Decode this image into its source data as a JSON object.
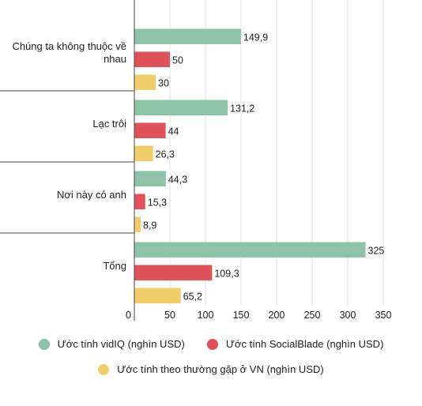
{
  "chart_data": {
    "type": "bar",
    "orientation": "horizontal",
    "title": "",
    "xlabel": "",
    "ylabel": "",
    "categories": [
      "Chúng ta không thuộc về nhau",
      "Lạc trôi",
      "Nơi này có anh",
      "Tổng"
    ],
    "series": [
      {
        "name": "Ước tính vidIQ (nghìn USD)",
        "color": "#8dc4a5",
        "values": [
          149.9,
          131.2,
          44.3,
          325
        ],
        "labels": [
          "149,9",
          "131,2",
          "44,3",
          "325"
        ]
      },
      {
        "name": "Ước tính SocialBlade (nghìn USD)",
        "color": "#e0525a",
        "values": [
          50,
          44,
          15.3,
          109.3
        ],
        "labels": [
          "50",
          "44",
          "15,3",
          "109,3"
        ]
      },
      {
        "name": "Ước tính theo thường gặp ở VN (nghìn USD)",
        "color": "#f2cd6b",
        "values": [
          30,
          26.3,
          8.9,
          65.2
        ],
        "labels": [
          "30",
          "26,3",
          "8,9",
          "65,2"
        ]
      }
    ],
    "xlim": [
      0,
      350
    ],
    "xticks": [
      0,
      50,
      100,
      150,
      200,
      250,
      300,
      350
    ],
    "grid": true,
    "legend": "bottom"
  }
}
